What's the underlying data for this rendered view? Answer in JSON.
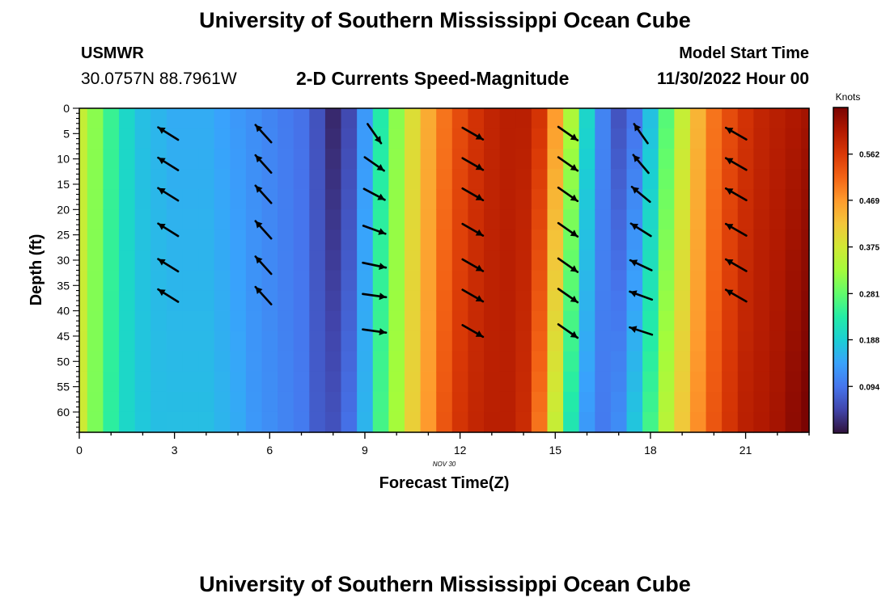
{
  "header": {
    "title": "University of Southern Mississippi Ocean Cube",
    "station": "USMWR",
    "coords": "30.0757N  88.7961W",
    "subtitle": "2-D Currents Speed-Magnitude",
    "model_label": "Model Start Time",
    "model_time": "11/30/2022 Hour 00"
  },
  "footer": {
    "title": "University of Southern Mississippi Ocean Cube"
  },
  "chart_data": {
    "type": "heatmap",
    "xlabel": "Forecast Time(Z)",
    "ylabel": "Depth (ft)",
    "date_label": "NOV 30",
    "xlim": [
      0,
      23
    ],
    "ylim": [
      0,
      64
    ],
    "x_ticks": [
      0,
      3,
      6,
      9,
      12,
      15,
      18,
      21
    ],
    "y_ticks": [
      0,
      5,
      10,
      15,
      20,
      25,
      30,
      35,
      40,
      45,
      50,
      55,
      60
    ],
    "colorbar": {
      "title": "Knots",
      "range": [
        0,
        0.656
      ],
      "ticks": [
        0.094,
        0.188,
        0.281,
        0.375,
        0.469,
        0.562
      ],
      "colors": [
        "#30123b",
        "#4145ab",
        "#4675ed",
        "#39a2fc",
        "#1bcfd4",
        "#24eca6",
        "#61fc6c",
        "#a4fc3b",
        "#d1e834",
        "#f3c63a",
        "#fe9b2d",
        "#f36315",
        "#d93806",
        "#b11901",
        "#7a0402"
      ]
    },
    "hours": [
      0,
      0.5,
      1,
      1.5,
      2,
      2.5,
      3,
      3.5,
      4,
      4.5,
      5,
      5.5,
      6,
      6.5,
      7,
      7.5,
      8,
      8.5,
      9,
      9.5,
      10,
      10.5,
      11,
      11.5,
      12,
      12.5,
      13,
      13.5,
      14,
      14.5,
      15,
      15.5,
      16,
      16.5,
      17,
      17.5,
      18,
      18.5,
      19,
      19.5,
      20,
      20.5,
      21,
      21.5,
      22,
      22.5,
      23
    ],
    "speed_surface": [
      0.36,
      0.31,
      0.25,
      0.2,
      0.17,
      0.16,
      0.15,
      0.15,
      0.15,
      0.14,
      0.13,
      0.12,
      0.11,
      0.1,
      0.09,
      0.06,
      0.02,
      0.05,
      0.13,
      0.23,
      0.31,
      0.39,
      0.45,
      0.5,
      0.54,
      0.57,
      0.59,
      0.6,
      0.6,
      0.57,
      0.47,
      0.34,
      0.2,
      0.11,
      0.06,
      0.09,
      0.17,
      0.27,
      0.36,
      0.44,
      0.5,
      0.54,
      0.57,
      0.59,
      0.6,
      0.61,
      0.62
    ],
    "speed_bottom": [
      0.37,
      0.3,
      0.24,
      0.2,
      0.18,
      0.17,
      0.17,
      0.17,
      0.17,
      0.16,
      0.15,
      0.13,
      0.12,
      0.11,
      0.1,
      0.07,
      0.06,
      0.09,
      0.16,
      0.26,
      0.33,
      0.41,
      0.47,
      0.53,
      0.57,
      0.59,
      0.6,
      0.6,
      0.58,
      0.5,
      0.36,
      0.22,
      0.13,
      0.1,
      0.12,
      0.18,
      0.26,
      0.35,
      0.42,
      0.48,
      0.53,
      0.57,
      0.6,
      0.61,
      0.62,
      0.64,
      0.66
    ],
    "vectors": {
      "depths": [
        5,
        11,
        17,
        24,
        31,
        37,
        44
      ],
      "columns": [
        {
          "hour": 2.8,
          "angle_deg": -148,
          "depth_count": 6
        },
        {
          "hour": 5.8,
          "angle_deg": -132,
          "depth_count": 6
        },
        {
          "hour": 9.3,
          "angle_deg": [
            55,
            35,
            28,
            20,
            12,
            8,
            8
          ]
        },
        {
          "hour": 12.4,
          "angle_deg": 30
        },
        {
          "hour": 15.4,
          "angle_deg": 35
        },
        {
          "hour": 17.7,
          "angle_deg": [
            -125,
            -130,
            -140,
            -148,
            -155,
            -160,
            -162
          ]
        },
        {
          "hour": 20.7,
          "angle_deg": -150,
          "depth_count": 6
        }
      ]
    }
  }
}
